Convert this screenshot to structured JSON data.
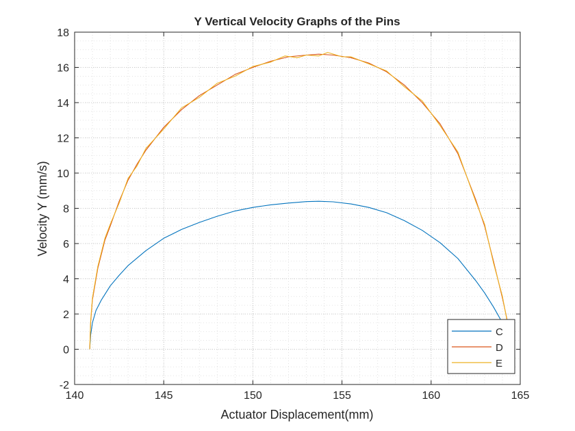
{
  "chart_data": {
    "type": "line",
    "title": "Y Vertical Velocity Graphs of the Pins",
    "xlabel": "Actuator Displacement(mm)",
    "ylabel": "Velocity Y (mm/s)",
    "xlim": [
      140,
      165
    ],
    "ylim": [
      -2,
      18
    ],
    "xticks": [
      140,
      145,
      150,
      155,
      160,
      165
    ],
    "yticks": [
      -2,
      0,
      2,
      4,
      6,
      8,
      10,
      12,
      14,
      16,
      18
    ],
    "grid": "minor-dotted",
    "legend_position": "bottom-right",
    "series": [
      {
        "name": "C",
        "color": "#0072BD",
        "x": [
          140.85,
          140.9,
          141.0,
          141.2,
          141.5,
          142.0,
          142.5,
          143.0,
          144.0,
          145.0,
          146.0,
          147.0,
          148.0,
          149.0,
          150.0,
          151.0,
          152.0,
          153.0,
          153.7,
          154.5,
          155.5,
          156.5,
          157.5,
          158.5,
          159.5,
          160.5,
          161.5,
          162.5,
          163.0,
          163.5,
          164.0,
          164.3,
          164.5,
          164.65
        ],
        "y": [
          0.0,
          0.8,
          1.5,
          2.2,
          2.8,
          3.6,
          4.2,
          4.75,
          5.6,
          6.3,
          6.8,
          7.2,
          7.55,
          7.85,
          8.05,
          8.2,
          8.3,
          8.38,
          8.4,
          8.37,
          8.25,
          8.05,
          7.75,
          7.3,
          6.75,
          6.05,
          5.15,
          3.9,
          3.2,
          2.4,
          1.5,
          0.9,
          0.4,
          0.0
        ]
      },
      {
        "name": "D",
        "color": "#D95319",
        "x": [
          140.85,
          140.9,
          141.0,
          141.3,
          141.7,
          142.0,
          142.5,
          143.0,
          143.5,
          144.0,
          145.0,
          146.0,
          147.0,
          148.0,
          149.0,
          150.0,
          151.0,
          152.0,
          153.0,
          153.7,
          154.5,
          155.5,
          156.5,
          157.5,
          158.5,
          159.5,
          160.5,
          161.5,
          162.5,
          163.0,
          163.5,
          164.0,
          164.3,
          164.5,
          164.65
        ],
        "y": [
          0.0,
          1.5,
          2.8,
          4.6,
          6.2,
          7.0,
          8.4,
          9.6,
          10.5,
          11.3,
          12.6,
          13.6,
          14.4,
          15.0,
          15.6,
          16.0,
          16.35,
          16.6,
          16.7,
          16.75,
          16.7,
          16.55,
          16.25,
          15.75,
          15.0,
          14.0,
          12.8,
          11.1,
          8.5,
          7.0,
          5.0,
          2.9,
          1.5,
          0.7,
          0.0
        ]
      },
      {
        "name": "E",
        "color": "#EDB120",
        "x": [
          140.85,
          140.9,
          141.0,
          141.3,
          141.7,
          142.0,
          142.5,
          143.0,
          143.5,
          144.0,
          145.0,
          146.0,
          147.0,
          148.0,
          149.0,
          150.0,
          151.0,
          151.8,
          152.5,
          153.0,
          153.7,
          154.2,
          155.0,
          155.5,
          156.5,
          157.5,
          158.5,
          159.5,
          160.5,
          161.5,
          162.5,
          163.0,
          163.5,
          164.0,
          164.3,
          164.5,
          164.65
        ],
        "y": [
          0.0,
          1.6,
          2.9,
          4.7,
          6.3,
          7.1,
          8.3,
          9.7,
          10.4,
          11.4,
          12.5,
          13.7,
          14.3,
          15.1,
          15.5,
          16.05,
          16.3,
          16.65,
          16.55,
          16.7,
          16.65,
          16.85,
          16.6,
          16.6,
          16.2,
          15.8,
          14.9,
          14.1,
          12.7,
          11.2,
          8.4,
          7.1,
          4.9,
          3.0,
          1.4,
          0.6,
          0.0
        ]
      }
    ]
  }
}
